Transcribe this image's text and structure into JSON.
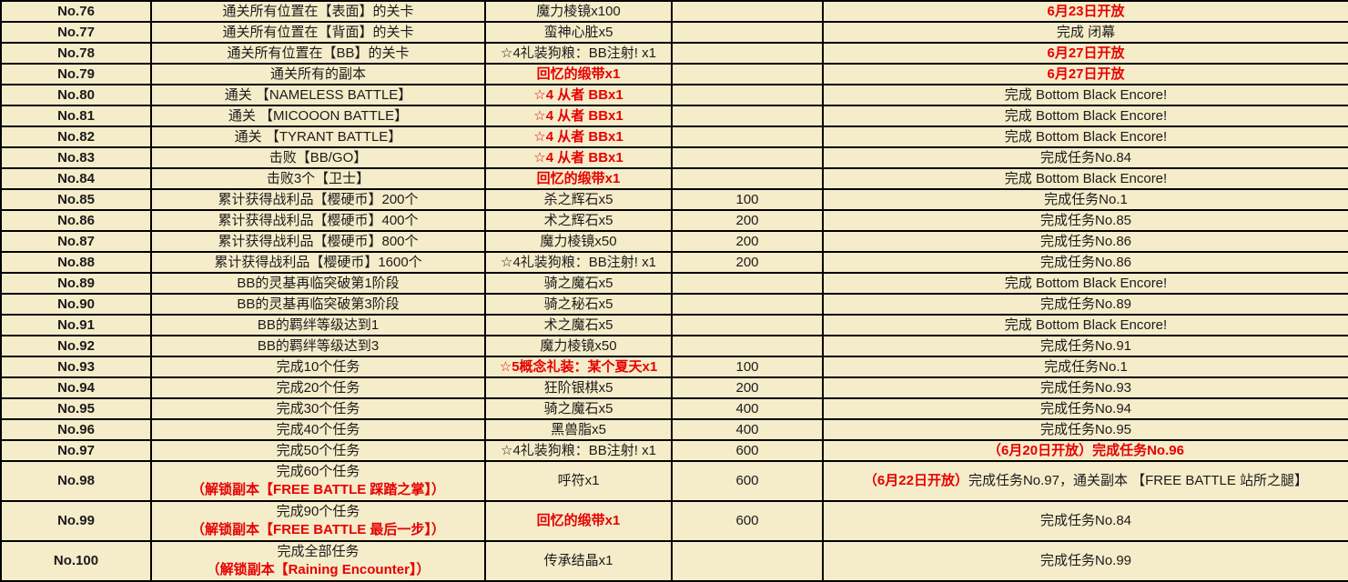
{
  "colors": {
    "cell_background": "#f5ecca",
    "border": "#000000",
    "text": "#1b1b1b",
    "accent_red": "#e60000"
  },
  "table": {
    "rows": [
      {
        "no": "No.76",
        "task": [
          {
            "text": "通关所有位置在【表面】的关卡",
            "red": false
          }
        ],
        "reward": {
          "text": "魔力棱镜x100",
          "red": false
        },
        "points": "",
        "condition": [
          {
            "text": "6月23日开放",
            "red": true
          }
        ]
      },
      {
        "no": "No.77",
        "task": [
          {
            "text": "通关所有位置在【背面】的关卡",
            "red": false
          }
        ],
        "reward": {
          "text": "蛮神心脏x5",
          "red": false
        },
        "points": "",
        "condition": [
          {
            "text": "完成 闭幕",
            "red": false
          }
        ]
      },
      {
        "no": "No.78",
        "task": [
          {
            "text": "通关所有位置在【BB】的关卡",
            "red": false
          }
        ],
        "reward": {
          "text": "☆4礼装狗粮：BB注射! x1",
          "red": false
        },
        "points": "",
        "condition": [
          {
            "text": "6月27日开放",
            "red": true
          }
        ]
      },
      {
        "no": "No.79",
        "task": [
          {
            "text": "通关所有的副本",
            "red": false
          }
        ],
        "reward": {
          "text": "回忆的缎带x1",
          "red": true
        },
        "points": "",
        "condition": [
          {
            "text": "6月27日开放",
            "red": true
          }
        ]
      },
      {
        "no": "No.80",
        "task": [
          {
            "text": "通关 【NAMELESS BATTLE】",
            "red": false
          }
        ],
        "reward": {
          "text": "☆4 从者 BBx1",
          "red": true
        },
        "points": "",
        "condition": [
          {
            "text": "完成 Bottom Black Encore!",
            "red": false
          }
        ]
      },
      {
        "no": "No.81",
        "task": [
          {
            "text": "通关 【MICOOON BATTLE】",
            "red": false
          }
        ],
        "reward": {
          "text": "☆4 从者 BBx1",
          "red": true
        },
        "points": "",
        "condition": [
          {
            "text": "完成 Bottom Black Encore!",
            "red": false
          }
        ]
      },
      {
        "no": "No.82",
        "task": [
          {
            "text": "通关 【TYRANT BATTLE】",
            "red": false
          }
        ],
        "reward": {
          "text": "☆4 从者 BBx1",
          "red": true
        },
        "points": "",
        "condition": [
          {
            "text": "完成 Bottom Black Encore!",
            "red": false
          }
        ]
      },
      {
        "no": "No.83",
        "task": [
          {
            "text": "击败【BB/GO】",
            "red": false
          }
        ],
        "reward": {
          "text": "☆4 从者 BBx1",
          "red": true
        },
        "points": "",
        "condition": [
          {
            "text": "完成任务No.84",
            "red": false
          }
        ]
      },
      {
        "no": "No.84",
        "task": [
          {
            "text": "击败3个【卫士】",
            "red": false
          }
        ],
        "reward": {
          "text": "回忆的缎带x1",
          "red": true
        },
        "points": "",
        "condition": [
          {
            "text": "完成 Bottom Black Encore!",
            "red": false
          }
        ]
      },
      {
        "no": "No.85",
        "task": [
          {
            "text": "累计获得战利品【樱硬币】200个",
            "red": false
          }
        ],
        "reward": {
          "text": "杀之辉石x5",
          "red": false
        },
        "points": "100",
        "condition": [
          {
            "text": "完成任务No.1",
            "red": false
          }
        ]
      },
      {
        "no": "No.86",
        "task": [
          {
            "text": "累计获得战利品【樱硬币】400个",
            "red": false
          }
        ],
        "reward": {
          "text": "术之辉石x5",
          "red": false
        },
        "points": "200",
        "condition": [
          {
            "text": "完成任务No.85",
            "red": false
          }
        ]
      },
      {
        "no": "No.87",
        "task": [
          {
            "text": "累计获得战利品【樱硬币】800个",
            "red": false
          }
        ],
        "reward": {
          "text": "魔力棱镜x50",
          "red": false
        },
        "points": "200",
        "condition": [
          {
            "text": "完成任务No.86",
            "red": false
          }
        ]
      },
      {
        "no": "No.88",
        "task": [
          {
            "text": "累计获得战利品【樱硬币】1600个",
            "red": false
          }
        ],
        "reward": {
          "text": "☆4礼装狗粮：BB注射! x1",
          "red": false
        },
        "points": "200",
        "condition": [
          {
            "text": "完成任务No.86",
            "red": false
          }
        ]
      },
      {
        "no": "No.89",
        "task": [
          {
            "text": "BB的灵基再临突破第1阶段",
            "red": false
          }
        ],
        "reward": {
          "text": "骑之魔石x5",
          "red": false
        },
        "points": "",
        "condition": [
          {
            "text": "完成 Bottom Black Encore!",
            "red": false
          }
        ]
      },
      {
        "no": "No.90",
        "task": [
          {
            "text": "BB的灵基再临突破第3阶段",
            "red": false
          }
        ],
        "reward": {
          "text": "骑之秘石x5",
          "red": false
        },
        "points": "",
        "condition": [
          {
            "text": "完成任务No.89",
            "red": false
          }
        ]
      },
      {
        "no": "No.91",
        "task": [
          {
            "text": "BB的羁绊等级达到1",
            "red": false
          }
        ],
        "reward": {
          "text": "术之魔石x5",
          "red": false
        },
        "points": "",
        "condition": [
          {
            "text": "完成 Bottom Black Encore!",
            "red": false
          }
        ]
      },
      {
        "no": "No.92",
        "task": [
          {
            "text": "BB的羁绊等级达到3",
            "red": false
          }
        ],
        "reward": {
          "text": "魔力棱镜x50",
          "red": false
        },
        "points": "",
        "condition": [
          {
            "text": "完成任务No.91",
            "red": false
          }
        ]
      },
      {
        "no": "No.93",
        "task": [
          {
            "text": "完成10个任务",
            "red": false
          }
        ],
        "reward": {
          "text": "☆5概念礼装：某个夏天x1",
          "red": true
        },
        "points": "100",
        "condition": [
          {
            "text": "完成任务No.1",
            "red": false
          }
        ]
      },
      {
        "no": "No.94",
        "task": [
          {
            "text": "完成20个任务",
            "red": false
          }
        ],
        "reward": {
          "text": "狂阶银棋x5",
          "red": false
        },
        "points": "200",
        "condition": [
          {
            "text": "完成任务No.93",
            "red": false
          }
        ]
      },
      {
        "no": "No.95",
        "task": [
          {
            "text": "完成30个任务",
            "red": false
          }
        ],
        "reward": {
          "text": "骑之魔石x5",
          "red": false
        },
        "points": "400",
        "condition": [
          {
            "text": "完成任务No.94",
            "red": false
          }
        ]
      },
      {
        "no": "No.96",
        "task": [
          {
            "text": "完成40个任务",
            "red": false
          }
        ],
        "reward": {
          "text": "黑兽脂x5",
          "red": false
        },
        "points": "400",
        "condition": [
          {
            "text": "完成任务No.95",
            "red": false
          }
        ]
      },
      {
        "no": "No.97",
        "task": [
          {
            "text": "完成50个任务",
            "red": false
          }
        ],
        "reward": {
          "text": "☆4礼装狗粮：BB注射! x1",
          "red": false
        },
        "points": "600",
        "condition": [
          {
            "text": "（6月20日开放）完成任务No.96",
            "red": true
          }
        ]
      },
      {
        "no": "No.98",
        "task": [
          {
            "text": "完成60个任务",
            "red": false
          },
          {
            "text": "（解锁副本【FREE BATTLE 踩踏之掌】）",
            "red": true
          }
        ],
        "reward": {
          "text": "呼符x1",
          "red": false
        },
        "points": "600",
        "condition": [
          {
            "text": "（6月22日开放）",
            "red": true
          },
          {
            "text": "完成任务No.97，通关副本 【FREE BATTLE 站所之腿】",
            "red": false
          }
        ]
      },
      {
        "no": "No.99",
        "task": [
          {
            "text": "完成90个任务",
            "red": false
          },
          {
            "text": "（解锁副本【FREE BATTLE 最后一步】）",
            "red": true
          }
        ],
        "reward": {
          "text": "回忆的缎带x1",
          "red": true
        },
        "points": "600",
        "condition": [
          {
            "text": "完成任务No.84",
            "red": false
          }
        ]
      },
      {
        "no": "No.100",
        "task": [
          {
            "text": "完成全部任务",
            "red": false
          },
          {
            "text": "（解锁副本【Raining Encounter】）",
            "red": true
          }
        ],
        "reward": {
          "text": "传承结晶x1",
          "red": false
        },
        "points": "",
        "condition": [
          {
            "text": "完成任务No.99",
            "red": false
          }
        ]
      }
    ]
  }
}
